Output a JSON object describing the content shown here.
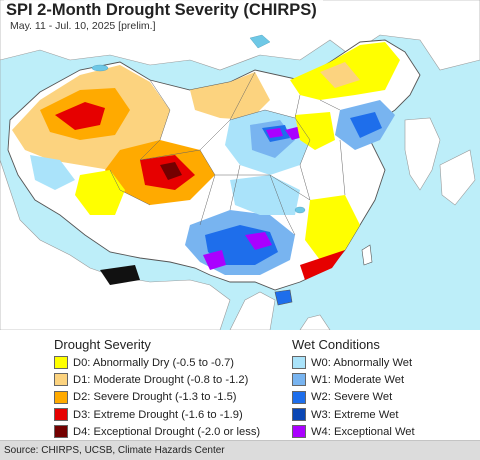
{
  "map": {
    "title": "SPI 2-Month Drought Severity (CHIRPS)",
    "subtitle": "May. 11 - Jul. 10, 2025 [prelim.]",
    "colors": {
      "ocean": "#bdeef9",
      "land_outside": "#ffffff",
      "neutral_land": "#ffffff",
      "lake": "#6ec8e6"
    }
  },
  "legend": {
    "drought": {
      "heading": "Drought Severity",
      "items": [
        {
          "code": "D0",
          "label": "D0: Abnormally Dry (-0.5 to -0.7)",
          "color": "#ffff00"
        },
        {
          "code": "D1",
          "label": "D1: Moderate Drought (-0.8 to -1.2)",
          "color": "#fcd37f"
        },
        {
          "code": "D2",
          "label": "D2: Severe Drought (-1.3 to -1.5)",
          "color": "#ffaa00"
        },
        {
          "code": "D3",
          "label": "D3: Extreme Drought (-1.6 to -1.9)",
          "color": "#e60000"
        },
        {
          "code": "D4",
          "label": "D4: Exceptional Drought (-2.0 or less)",
          "color": "#730000"
        }
      ]
    },
    "wet": {
      "heading": "Wet Conditions",
      "items": [
        {
          "code": "W0",
          "label": "W0: Abnormally Wet",
          "color": "#aae3fa"
        },
        {
          "code": "W1",
          "label": "W1: Moderate Wet",
          "color": "#78b4f0"
        },
        {
          "code": "W2",
          "label": "W2: Severe Wet",
          "color": "#1e6eeb"
        },
        {
          "code": "W3",
          "label": "W3: Extreme Wet",
          "color": "#0a46b4"
        },
        {
          "code": "W4",
          "label": "W4: Exceptional Wet",
          "color": "#aa00ff"
        }
      ]
    }
  },
  "footer": {
    "source": "Source: CHIRPS, UCSB, Climate Hazards Center"
  }
}
